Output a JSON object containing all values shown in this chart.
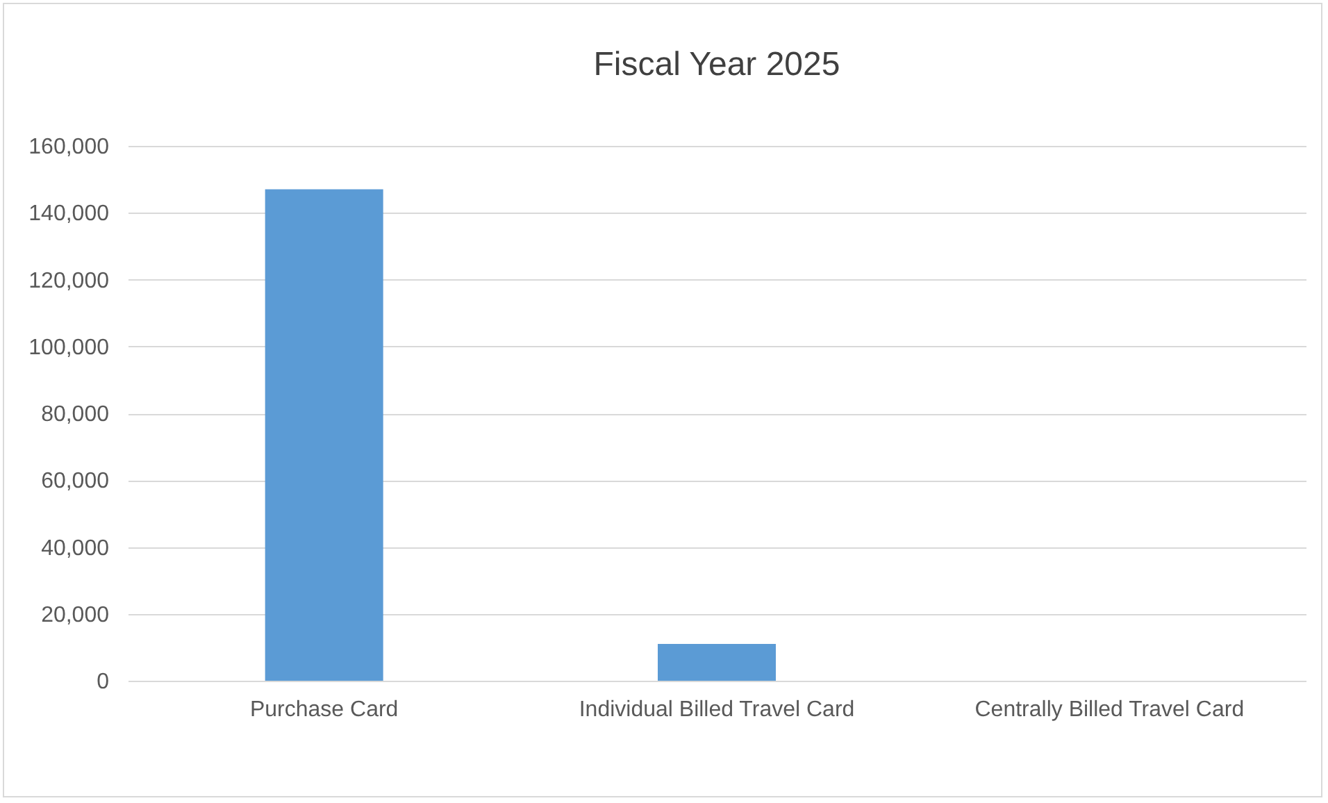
{
  "chart_data": {
    "type": "bar",
    "title": "Fiscal Year 2025",
    "categories": [
      "Purchase Card",
      "Individual Billed Travel Card",
      "Centrally Billed Travel Card"
    ],
    "values": [
      147000,
      11000,
      0
    ],
    "color": "#5b9bd5",
    "ylim": [
      0,
      160000
    ],
    "yticks": [
      0,
      {
        "value": 20000,
        "label": "20,000"
      },
      {
        "value": 40000,
        "label": "40,000"
      },
      {
        "value": 60000,
        "label": "60,000"
      },
      {
        "value": 80000,
        "label": "80,000"
      },
      {
        "value": 100000,
        "label": "100,000"
      },
      {
        "value": 120000,
        "label": "120,000"
      },
      {
        "value": 140000,
        "label": "140,000"
      },
      {
        "value": 160000,
        "label": "160,000"
      }
    ],
    "grid": "y"
  }
}
